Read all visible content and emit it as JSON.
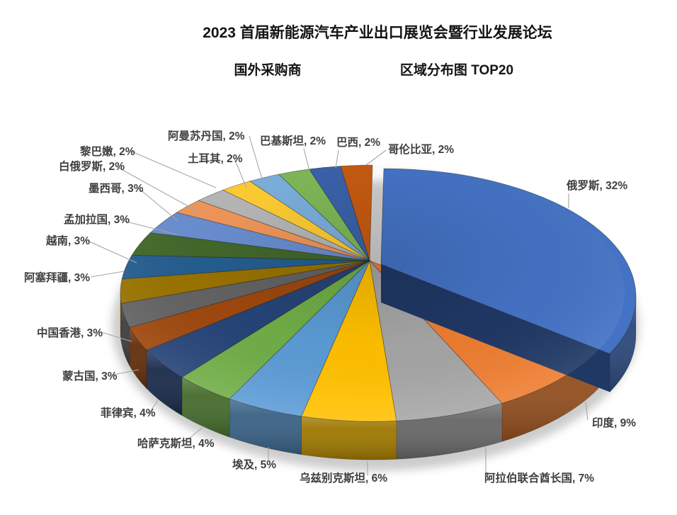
{
  "title": "2023 首届新能源汽车产业出口展览会暨行业发展论坛",
  "subtitle": {
    "left": "国外采购商",
    "right": "区域分布图 TOP20"
  },
  "chart_data": {
    "type": "pie",
    "style": "3d-pie, data labels outside with leader lines, largest slice exploded",
    "title": "2023 首届新能源汽车产业出口展览会暨行业发展论坛",
    "subtitle": "国外采购商 区域分布图 TOP20",
    "unit": "%",
    "legend": "none",
    "exploded_slice": "俄罗斯",
    "slices": [
      {
        "name": "俄罗斯",
        "value": 32,
        "label": "俄罗斯, 32%",
        "color": "#4472C4"
      },
      {
        "name": "印度",
        "value": 9,
        "label": "印度, 9%",
        "color": "#ED7D31"
      },
      {
        "name": "阿拉伯联合酋长国",
        "value": 7,
        "label": "阿拉伯联合酋长国, 7%",
        "color": "#A5A5A5"
      },
      {
        "name": "乌兹别克斯坦",
        "value": 6,
        "label": "乌兹别克斯坦, 6%",
        "color": "#FFC000"
      },
      {
        "name": "埃及",
        "value": 5,
        "label": "埃及, 5%",
        "color": "#5B9BD5"
      },
      {
        "name": "哈萨克斯坦",
        "value": 4,
        "label": "哈萨克斯坦, 4%",
        "color": "#70AD47"
      },
      {
        "name": "菲律宾",
        "value": 4,
        "label": "菲律宾, 4%",
        "color": "#264478"
      },
      {
        "name": "蒙古国",
        "value": 3,
        "label": "蒙古国, 3%",
        "color": "#9E480E"
      },
      {
        "name": "中国香港",
        "value": 3,
        "label": "中国香港, 3%",
        "color": "#636363"
      },
      {
        "name": "阿塞拜疆",
        "value": 3,
        "label": "阿塞拜疆, 3%",
        "color": "#997300"
      },
      {
        "name": "越南",
        "value": 3,
        "label": "越南, 3%",
        "color": "#255E91"
      },
      {
        "name": "孟加拉国",
        "value": 3,
        "label": "孟加拉国, 3%",
        "color": "#43682B"
      },
      {
        "name": "墨西哥",
        "value": 3,
        "label": "墨西哥, 3%",
        "color": "#698ED0"
      },
      {
        "name": "白俄罗斯",
        "value": 2,
        "label": "白俄罗斯, 2%",
        "color": "#F1975A"
      },
      {
        "name": "黎巴嫩",
        "value": 2,
        "label": "黎巴嫩, 2%",
        "color": "#B7B7B7"
      },
      {
        "name": "阿曼苏丹国",
        "value": 2,
        "label": "阿曼苏丹国, 2%",
        "color": "#FFCD33"
      },
      {
        "name": "土耳其",
        "value": 2,
        "label": "土耳其, 2%",
        "color": "#7CAFDD"
      },
      {
        "name": "巴基斯坦",
        "value": 2,
        "label": "巴基斯坦, 2%",
        "color": "#7FB857"
      },
      {
        "name": "巴西",
        "value": 2,
        "label": "巴西, 2%",
        "color": "#3A62A9"
      },
      {
        "name": "哥伦比亚",
        "value": 2,
        "label": "哥伦比亚, 2%",
        "color": "#C55A11"
      }
    ]
  }
}
